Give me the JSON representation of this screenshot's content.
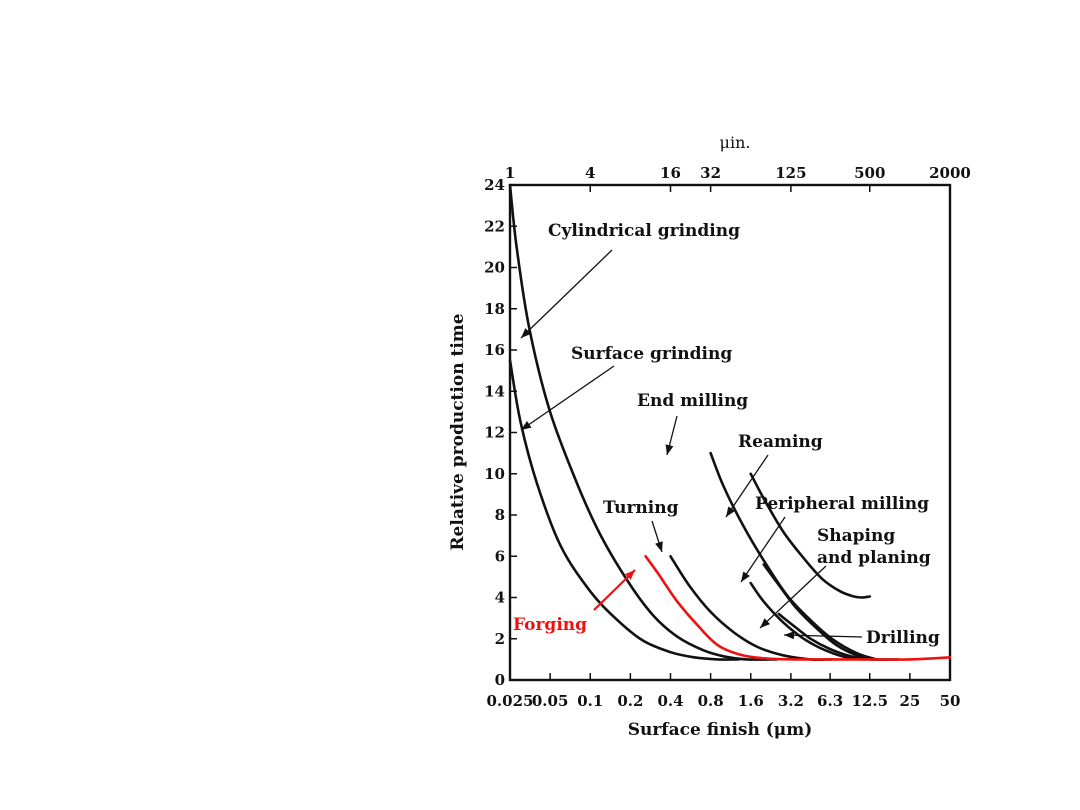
{
  "chart_data": {
    "type": "line",
    "xlabel": "Surface finish (μm)",
    "ylabel": "Relative production time",
    "x2label": "μin.",
    "x_scale": "log",
    "xlim": [
      0.025,
      50
    ],
    "ylim": [
      0,
      24
    ],
    "x_ticks": [
      "0.025",
      "0.05",
      "0.1",
      "0.2",
      "0.4",
      "0.8",
      "1.6",
      "3.2",
      "6.3",
      "12.5",
      "25",
      "50"
    ],
    "x2_ticks": [
      {
        "label": "1",
        "at": 0.025
      },
      {
        "label": "4",
        "at": 0.1
      },
      {
        "label": "16",
        "at": 0.4
      },
      {
        "label": "32",
        "at": 0.8
      },
      {
        "label": "125",
        "at": 3.2
      },
      {
        "label": "500",
        "at": 12.5
      },
      {
        "label": "2000",
        "at": 50
      }
    ],
    "y_ticks": [
      "0",
      "2",
      "4",
      "6",
      "8",
      "10",
      "12",
      "14",
      "16",
      "18",
      "20",
      "22",
      "24"
    ],
    "grid": false,
    "series": [
      {
        "name": "Cylindrical grinding",
        "color": "#111111",
        "x": [
          0.025,
          0.028,
          0.035,
          0.05,
          0.08,
          0.12,
          0.2,
          0.3,
          0.45,
          0.7,
          1.0,
          1.5,
          2.5
        ],
        "y": [
          24,
          21,
          17,
          13,
          9.5,
          7,
          4.6,
          3.1,
          2.1,
          1.45,
          1.15,
          1.0,
          1.0
        ]
      },
      {
        "name": "Surface grinding",
        "color": "#111111",
        "x": [
          0.025,
          0.03,
          0.04,
          0.06,
          0.1,
          0.16,
          0.25,
          0.4,
          0.6,
          0.9,
          1.3
        ],
        "y": [
          15.5,
          12.5,
          9.5,
          6.5,
          4.3,
          2.9,
          1.9,
          1.35,
          1.1,
          1.0,
          1.0
        ]
      },
      {
        "name": "Turning",
        "color": "#111111",
        "x": [
          0.4,
          0.55,
          0.8,
          1.2,
          1.8,
          2.8,
          4.5,
          6.5
        ],
        "y": [
          6,
          4.6,
          3.3,
          2.3,
          1.6,
          1.2,
          1.0,
          1.0
        ]
      },
      {
        "name": "End milling",
        "color": "#111111",
        "x": [
          0.8,
          1.0,
          1.4,
          2.0,
          3.0,
          4.5,
          6.5,
          10,
          14
        ],
        "y": [
          11,
          9.4,
          7.5,
          5.8,
          4.1,
          2.9,
          2.0,
          1.3,
          1.0
        ]
      },
      {
        "name": "Reaming",
        "color": "#111111",
        "x": [
          1.6,
          2.0,
          2.8,
          4.0,
          5.5,
          7.5,
          9.5,
          11,
          12.5
        ],
        "y": [
          10,
          8.8,
          7.2,
          5.9,
          4.9,
          4.3,
          4.05,
          4.0,
          4.05
        ]
      },
      {
        "name": "Peripheral milling",
        "color": "#111111",
        "x": [
          1.6,
          2.0,
          2.8,
          4.0,
          6.0,
          9.0,
          13
        ],
        "y": [
          4.7,
          3.8,
          2.8,
          2.0,
          1.4,
          1.05,
          1.0
        ]
      },
      {
        "name": "Shaping and planing",
        "color": "#111111",
        "x": [
          2.0,
          2.6,
          3.5,
          5.0,
          7.0,
          10,
          14
        ],
        "y": [
          5.6,
          4.6,
          3.5,
          2.5,
          1.7,
          1.2,
          1.0
        ]
      },
      {
        "name": "Drilling",
        "color": "#111111",
        "x": [
          2.6,
          3.4,
          4.5,
          6.3,
          9,
          13,
          20
        ],
        "y": [
          3.2,
          2.6,
          2.0,
          1.5,
          1.15,
          1.0,
          1.0
        ]
      },
      {
        "name": "Forging",
        "color": "#ee1111",
        "x": [
          0.26,
          0.32,
          0.45,
          0.65,
          0.9,
          1.3,
          2.0,
          3.5,
          6.3,
          12.5,
          25,
          50
        ],
        "y": [
          6,
          5.2,
          3.8,
          2.6,
          1.7,
          1.25,
          1.05,
          1.0,
          1.0,
          1.0,
          1.0,
          1.1
        ]
      }
    ],
    "annotations": [
      {
        "label": "Cylindrical grinding",
        "lines": [
          "Cylindrical grinding"
        ]
      },
      {
        "label": "Surface grinding",
        "lines": [
          "Surface grinding"
        ]
      },
      {
        "label": "End milling",
        "lines": [
          "End milling"
        ]
      },
      {
        "label": "Reaming",
        "lines": [
          "Reaming"
        ]
      },
      {
        "label": "Turning",
        "lines": [
          "Turning"
        ]
      },
      {
        "label": "Peripheral milling",
        "lines": [
          "Peripheral milling"
        ]
      },
      {
        "label": "Shaping and planing",
        "lines": [
          "Shaping",
          "and planing"
        ]
      },
      {
        "label": "Drilling",
        "lines": [
          "Drilling"
        ]
      },
      {
        "label": "Forging",
        "lines": [
          "Forging"
        ],
        "color": "#ee1111"
      }
    ]
  }
}
